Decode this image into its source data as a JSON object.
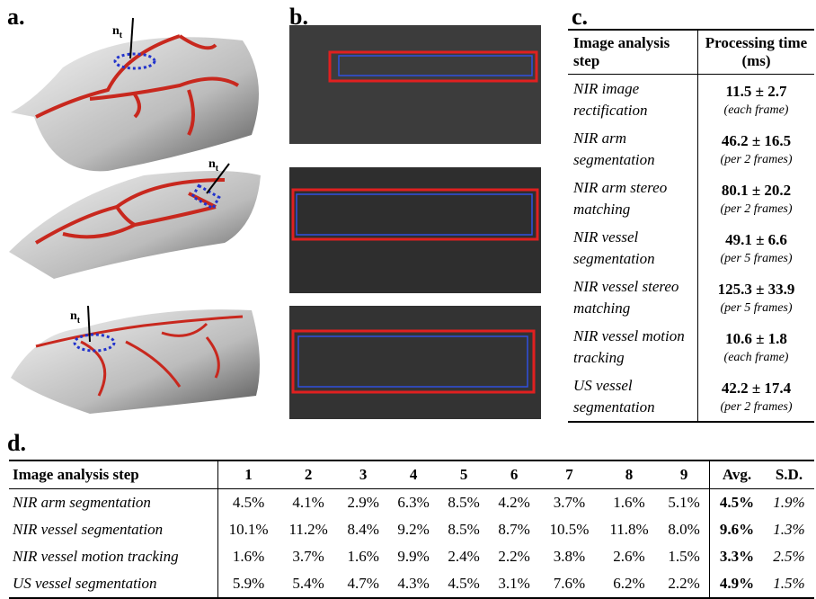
{
  "panel_a": {
    "label": "a.",
    "normal_labels": [
      {
        "base": "n",
        "sub": "t"
      },
      {
        "base": "n",
        "sub": "t"
      },
      {
        "base": "n",
        "sub": "t"
      }
    ]
  },
  "panel_b": {
    "label": "b."
  },
  "panel_c": {
    "label": "c.",
    "table": {
      "header": [
        "Image analysis step",
        "Processing time (ms)"
      ],
      "rows": [
        {
          "step": "NIR image rectification",
          "time": "11.5 ± 2.7",
          "note": "(each frame)"
        },
        {
          "step": "NIR arm segmentation",
          "time": "46.2 ± 16.5",
          "note": "(per 2 frames)"
        },
        {
          "step": "NIR arm stereo matching",
          "time": "80.1 ± 20.2",
          "note": "(per 2 frames)"
        },
        {
          "step": "NIR vessel segmentation",
          "time": "49.1 ± 6.6",
          "note": "(per 5 frames)"
        },
        {
          "step": "NIR vessel stereo matching",
          "time": "125.3 ± 33.9",
          "note": "(per 5 frames)"
        },
        {
          "step": "NIR vessel motion tracking",
          "time": "10.6 ± 1.8",
          "note": "(each frame)"
        },
        {
          "step": "US vessel segmentation",
          "time": "42.2 ± 17.4",
          "note": "(per 2 frames)"
        }
      ]
    }
  },
  "panel_d": {
    "label": "d.",
    "table": {
      "header": [
        "Image analysis step",
        "1",
        "2",
        "3",
        "4",
        "5",
        "6",
        "7",
        "8",
        "9",
        "Avg.",
        "S.D."
      ],
      "rows": [
        [
          "NIR arm segmentation",
          "4.5%",
          "4.1%",
          "2.9%",
          "6.3%",
          "8.5%",
          "4.2%",
          "3.7%",
          "1.6%",
          "5.1%",
          "4.5%",
          "1.9%"
        ],
        [
          "NIR vessel segmentation",
          "10.1%",
          "11.2%",
          "8.4%",
          "9.2%",
          "8.5%",
          "8.7%",
          "10.5%",
          "11.8%",
          "8.0%",
          "9.6%",
          "1.3%"
        ],
        [
          "NIR vessel motion tracking",
          "1.6%",
          "3.7%",
          "1.6%",
          "9.9%",
          "2.4%",
          "2.2%",
          "3.8%",
          "2.6%",
          "1.5%",
          "3.3%",
          "2.5%"
        ],
        [
          "US vessel segmentation",
          "5.9%",
          "5.4%",
          "4.7%",
          "4.3%",
          "4.5%",
          "3.1%",
          "7.6%",
          "6.2%",
          "2.2%",
          "4.9%",
          "1.5%"
        ]
      ]
    }
  }
}
